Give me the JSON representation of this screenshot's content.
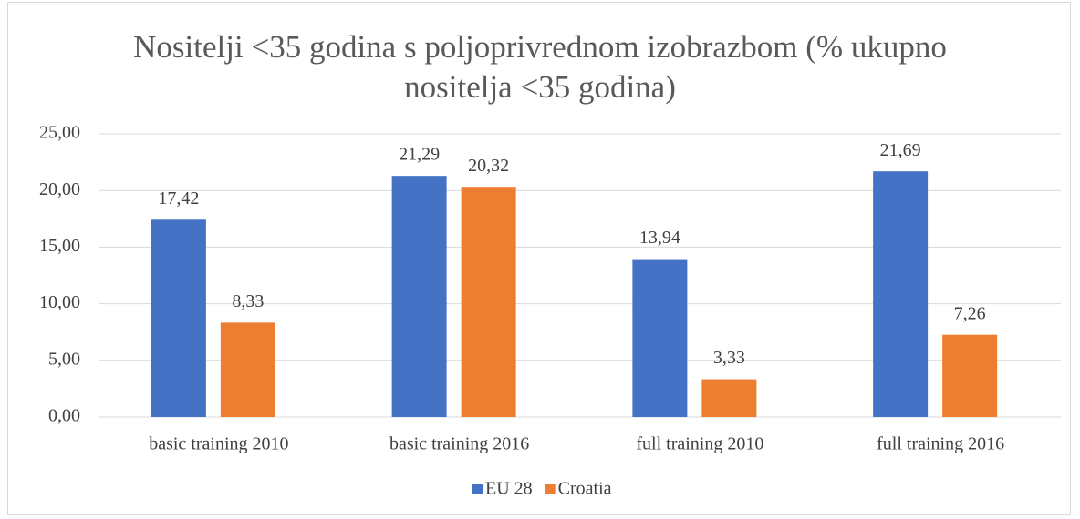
{
  "chart_data": {
    "type": "bar",
    "title": "Nositelji <35 godina s poljoprivrednom izobrazbom (% ukupno nositelja <35 godina)",
    "categories": [
      "basic training 2010",
      "basic training 2016",
      "full training 2010",
      "full training 2016"
    ],
    "series": [
      {
        "name": "EU 28",
        "color": "#4472c4",
        "values": [
          17.42,
          21.29,
          13.94,
          21.69
        ],
        "value_labels": [
          "17,42",
          "21,29",
          "13,94",
          "21,69"
        ]
      },
      {
        "name": "Croatia",
        "color": "#ed7d31",
        "values": [
          8.33,
          20.32,
          3.33,
          7.26
        ],
        "value_labels": [
          "8,33",
          "20,32",
          "3,33",
          "7,26"
        ]
      }
    ],
    "ylim": [
      0,
      25
    ],
    "yticks": [
      {
        "value": 0,
        "label": "0,00"
      },
      {
        "value": 5,
        "label": "5,00"
      },
      {
        "value": 10,
        "label": "10,00"
      },
      {
        "value": 15,
        "label": "15,00"
      },
      {
        "value": 20,
        "label": "20,00"
      },
      {
        "value": 25,
        "label": "25,00"
      }
    ],
    "grid": true,
    "legend": "bottom"
  }
}
